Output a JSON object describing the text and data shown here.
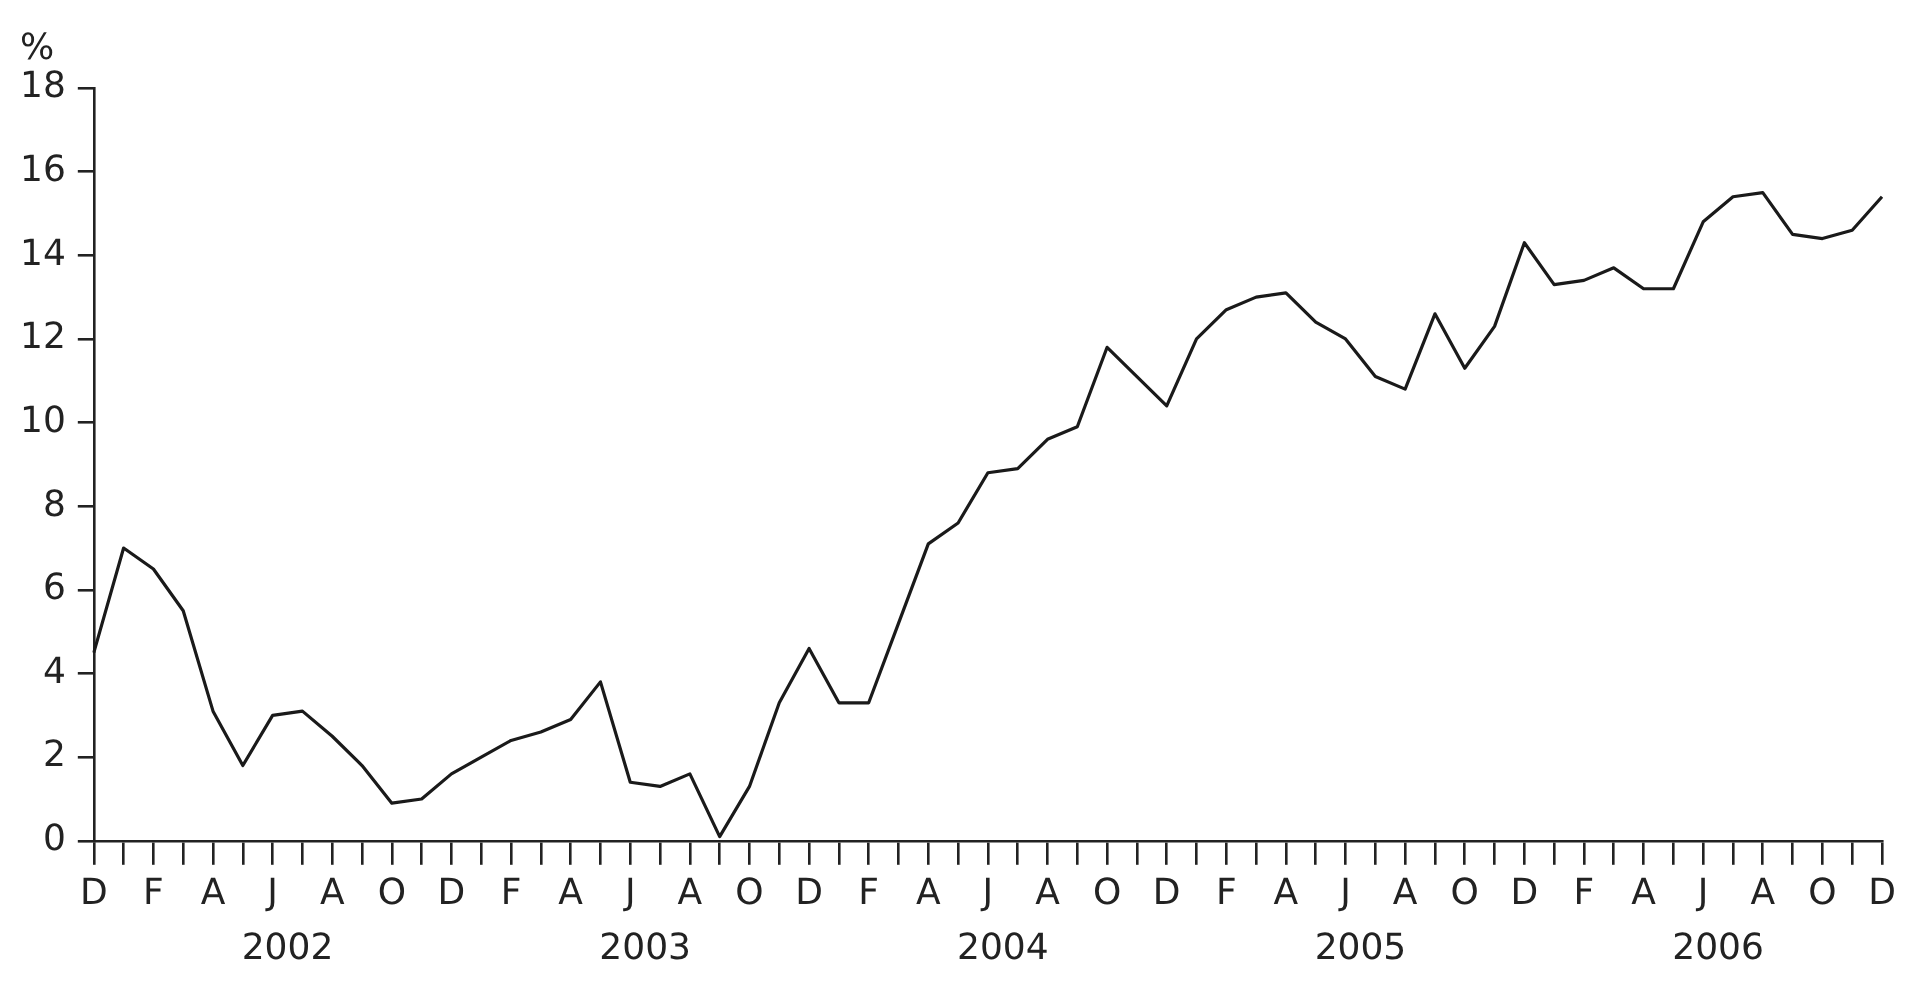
{
  "chart_data": {
    "type": "line",
    "ylabel": "%",
    "categories": [
      "D",
      null,
      "F",
      null,
      "A",
      null,
      "J",
      null,
      "A",
      null,
      "O",
      null,
      "D",
      null,
      "F",
      null,
      "A",
      null,
      "J",
      null,
      "A",
      null,
      "O",
      null,
      "D",
      null,
      "F",
      null,
      "A",
      null,
      "J",
      null,
      "A",
      null,
      "O",
      null,
      "D",
      null,
      "F",
      null,
      "A",
      null,
      "J",
      null,
      "A",
      null,
      "O",
      null,
      "D",
      null,
      "F",
      null,
      "A",
      null,
      "J",
      null,
      "A",
      null,
      "O",
      null,
      "D"
    ],
    "series": [
      {
        "color": "#1a1a1a",
        "values": [
          4.5,
          7.0,
          6.5,
          5.5,
          3.1,
          1.8,
          3.0,
          3.1,
          2.5,
          1.8,
          0.9,
          1.0,
          1.6,
          2.0,
          2.4,
          2.6,
          2.9,
          3.8,
          1.4,
          1.3,
          1.6,
          0.1,
          1.3,
          3.3,
          4.6,
          3.3,
          3.3,
          5.2,
          7.1,
          7.6,
          8.8,
          8.9,
          9.6,
          9.9,
          11.8,
          11.1,
          10.4,
          12.0,
          12.7,
          13.0,
          13.1,
          12.4,
          12.0,
          11.1,
          10.8,
          12.6,
          11.3,
          12.3,
          14.3,
          13.3,
          13.4,
          13.7,
          13.2,
          13.2,
          14.8,
          15.4,
          15.5,
          14.5,
          14.4,
          14.6,
          15.4
        ]
      }
    ],
    "ylim": [
      0,
      18
    ],
    "yticks": [
      0,
      2,
      4,
      6,
      8,
      10,
      12,
      14,
      16,
      18
    ],
    "annotations": [
      "2002",
      "2003",
      "2004",
      "2005",
      "2006"
    ],
    "grid": false,
    "legend": false,
    "marker": "none",
    "line_style": "solid"
  }
}
